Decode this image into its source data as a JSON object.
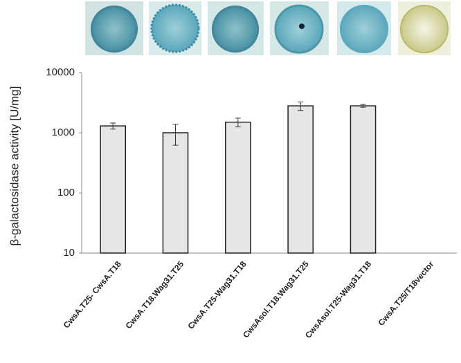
{
  "chart_data": {
    "type": "bar",
    "y_label": "β-galactosidase activity [U/mg]",
    "categories": [
      "CwsA.T25- CwsA.T18",
      "CwsA.T18.Wag31.T25",
      "CwsA.T25-Wag31.T18",
      "CwsAsol.T18.Wag31.T25",
      "CwsAsol.T25-Wag31.T18",
      "CwsA.T25/T18vector"
    ],
    "values": [
      1300,
      1000,
      1500,
      2800,
      2800,
      10
    ],
    "errors": [
      150,
      380,
      250,
      450,
      150,
      0
    ],
    "color": "#e6e6e6",
    "edge_color": "#222222",
    "log_scale": true,
    "ylim": [
      10,
      10000
    ],
    "yticks": [
      10,
      100,
      1000,
      10000
    ],
    "grid": false
  }
}
